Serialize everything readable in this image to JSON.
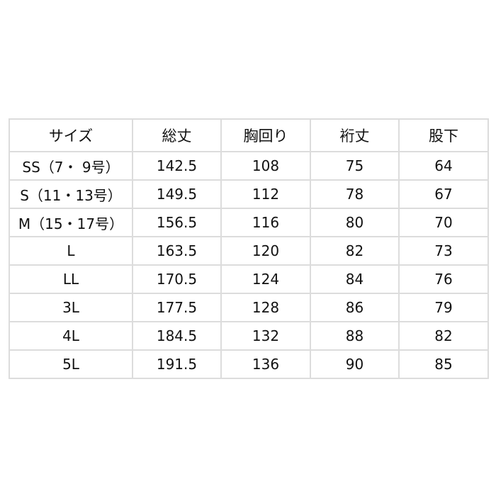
{
  "table": {
    "headers": [
      "サイズ",
      "総丈",
      "胸回り",
      "裄丈",
      "股下"
    ],
    "rows": [
      [
        "SS（7・ 9号）",
        "142.5",
        "108",
        "75",
        "64"
      ],
      [
        "S（11・13号）",
        "149.5",
        "112",
        "78",
        "67"
      ],
      [
        "M（15・17号）",
        "156.5",
        "116",
        "80",
        "70"
      ],
      [
        "L",
        "163.5",
        "120",
        "82",
        "73"
      ],
      [
        "LL",
        "170.5",
        "124",
        "84",
        "76"
      ],
      [
        "3L",
        "177.5",
        "128",
        "86",
        "79"
      ],
      [
        "4L",
        "184.5",
        "132",
        "88",
        "82"
      ],
      [
        "5L",
        "191.5",
        "136",
        "90",
        "85"
      ]
    ]
  }
}
